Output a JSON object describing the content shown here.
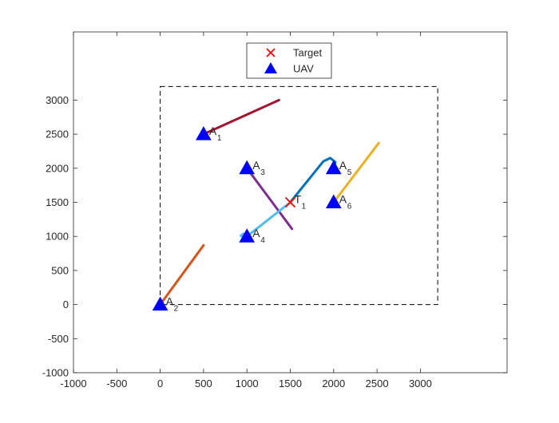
{
  "chart_data": {
    "type": "scatter",
    "xlim": [
      -1000,
      4000
    ],
    "ylim": [
      -1000,
      4000
    ],
    "x_ticks": [
      -1000,
      -500,
      0,
      500,
      1000,
      1500,
      2000,
      2500,
      3000
    ],
    "y_ticks": [
      -1000,
      -500,
      0,
      500,
      1000,
      1500,
      2000,
      2500,
      3000
    ],
    "x_tick_labels": [
      "-1000",
      "-500",
      "0",
      "500",
      "1000",
      "1500",
      "2000",
      "2500",
      "3000"
    ],
    "y_tick_labels": [
      "-1000",
      "-500",
      "0",
      "500",
      "1000",
      "1500",
      "2000",
      "2500",
      "3000"
    ],
    "grid": false,
    "legend": {
      "placement": "top-center",
      "entries": [
        {
          "label": "Target",
          "marker": "x",
          "color": "#ff0000"
        },
        {
          "label": "UAV",
          "marker": "triangle",
          "color": "#0000ff"
        }
      ]
    },
    "boundary": {
      "x": [
        0,
        3200
      ],
      "y": [
        0,
        3200
      ],
      "style": "dashed",
      "color": "#000000"
    },
    "targets": [
      {
        "label": "T",
        "sub": "1",
        "x": 1500,
        "y": 1500,
        "color": "#ff0000"
      }
    ],
    "uavs": [
      {
        "label": "A",
        "sub": "1",
        "x": 500,
        "y": 2500
      },
      {
        "label": "A",
        "sub": "2",
        "x": 0,
        "y": 0
      },
      {
        "label": "A",
        "sub": "3",
        "x": 1000,
        "y": 2000
      },
      {
        "label": "A",
        "sub": "4",
        "x": 1000,
        "y": 1000
      },
      {
        "label": "A",
        "sub": "5",
        "x": 2000,
        "y": 2000
      },
      {
        "label": "A",
        "sub": "6",
        "x": 2000,
        "y": 1500
      }
    ],
    "uav_color": "#0000ff",
    "paths": [
      {
        "color": "#a2142f",
        "points": [
          [
            500,
            2500
          ],
          [
            1370,
            3000
          ]
        ]
      },
      {
        "color": "#d95319",
        "points": [
          [
            0,
            0
          ],
          [
            500,
            870
          ]
        ]
      },
      {
        "color": "#7e2f8e",
        "points": [
          [
            1000,
            2000
          ],
          [
            1520,
            1110
          ]
        ]
      },
      {
        "color": "#4dbeee",
        "points": [
          [
            1000,
            1000
          ],
          [
            960,
            1040
          ],
          [
            930,
            1010
          ],
          [
            960,
            980
          ],
          [
            1010,
            1010
          ],
          [
            1250,
            1250
          ],
          [
            1500,
            1500
          ]
        ]
      },
      {
        "color": "#0072bd",
        "points": [
          [
            1500,
            1500
          ],
          [
            1880,
            2100
          ],
          [
            1960,
            2150
          ],
          [
            2020,
            2090
          ],
          [
            2000,
            2000
          ]
        ]
      },
      {
        "color": "#edb120",
        "points": [
          [
            2000,
            1500
          ],
          [
            2520,
            2370
          ]
        ]
      }
    ]
  }
}
